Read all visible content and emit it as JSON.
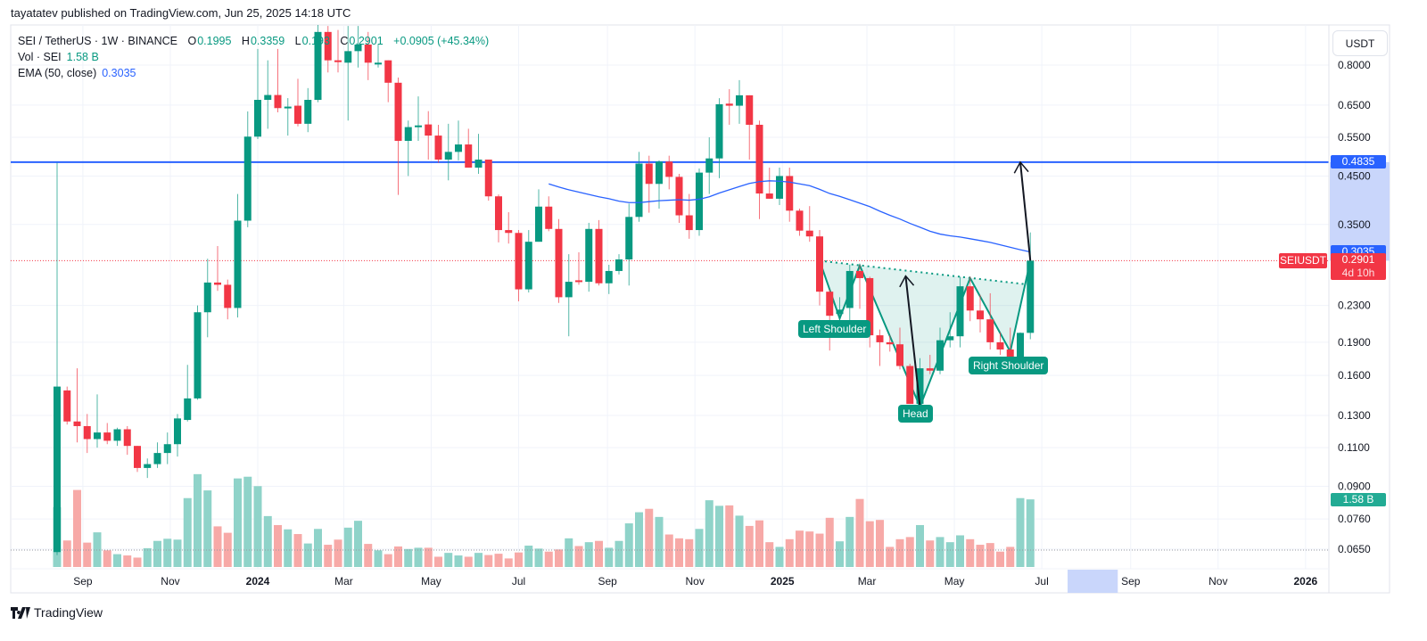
{
  "publish_line": "tayatatev published on TradingView.com, Jun 25, 2025 14:18 UTC",
  "legend": {
    "symbol": "SEI / TetherUS · 1W · BINANCE",
    "open_label": "O",
    "open": "0.1995",
    "high_label": "H",
    "high": "0.3359",
    "low_label": "L",
    "low": "0.193",
    "close_label": "C",
    "close": "0.2901",
    "change": "+0.0905 (+45.34%)",
    "volume_label": "Vol · SEI",
    "volume": "1.58 B",
    "ema_label": "EMA (50, close)",
    "ema": "0.3035"
  },
  "currency_button": "USDT",
  "tags": {
    "target_price": "0.4835",
    "ema_price": "0.3035",
    "symbol": "SEIUSDT",
    "last_price": "0.2901",
    "countdown": "4d 10h",
    "volume": "1.58 B"
  },
  "pattern_labels": {
    "left_shoulder": "Left Shoulder",
    "head": "Head",
    "right_shoulder": "Right Shoulder"
  },
  "logo_text": "TradingView",
  "colors": {
    "up": "#089981",
    "down": "#f23645",
    "ema": "#2962ff",
    "level_line": "#2962ff",
    "pattern": "#089981",
    "volume_up": "#8fd3c9",
    "volume_down": "#f7a9a7"
  },
  "chart_data": {
    "type": "candlestick",
    "symbol": "SEIUSDT",
    "interval": "1W",
    "y_scale": "log",
    "grid": true,
    "columns": [
      "date",
      "open",
      "high",
      "low",
      "close",
      "volume_B",
      "ema50"
    ],
    "candles": [
      [
        "2023-08-14",
        0.064,
        0.482,
        0.063,
        0.151,
        1.4,
        null
      ],
      [
        "2023-08-21",
        0.148,
        0.151,
        0.124,
        0.126,
        0.62,
        null
      ],
      [
        "2023-08-28",
        0.126,
        0.166,
        0.113,
        0.123,
        1.8,
        null
      ],
      [
        "2023-09-04",
        0.123,
        0.131,
        0.107,
        0.115,
        0.57,
        null
      ],
      [
        "2023-09-11",
        0.115,
        0.145,
        0.11,
        0.119,
        0.81,
        null
      ],
      [
        "2023-09-18",
        0.119,
        0.125,
        0.112,
        0.114,
        0.39,
        null
      ],
      [
        "2023-09-25",
        0.114,
        0.122,
        0.111,
        0.121,
        0.3,
        null
      ],
      [
        "2023-10-02",
        0.121,
        0.123,
        0.106,
        0.111,
        0.27,
        null
      ],
      [
        "2023-10-09",
        0.111,
        0.111,
        0.097,
        0.099,
        0.22,
        null
      ],
      [
        "2023-10-16",
        0.099,
        0.104,
        0.094,
        0.101,
        0.44,
        null
      ],
      [
        "2023-10-23",
        0.101,
        0.113,
        0.099,
        0.107,
        0.61,
        null
      ],
      [
        "2023-10-30",
        0.107,
        0.119,
        0.101,
        0.112,
        0.66,
        null
      ],
      [
        "2023-11-06",
        0.112,
        0.131,
        0.105,
        0.128,
        0.64,
        null
      ],
      [
        "2023-11-13",
        0.127,
        0.169,
        0.126,
        0.142,
        1.61,
        null
      ],
      [
        "2023-11-20",
        0.142,
        0.23,
        0.141,
        0.222,
        2.17,
        null
      ],
      [
        "2023-11-27",
        0.222,
        0.293,
        0.195,
        0.259,
        1.79,
        null
      ],
      [
        "2023-12-04",
        0.259,
        0.313,
        0.248,
        0.256,
        0.95,
        null
      ],
      [
        "2023-12-11",
        0.256,
        0.263,
        0.214,
        0.227,
        0.8,
        null
      ],
      [
        "2023-12-18",
        0.227,
        0.41,
        0.216,
        0.357,
        2.07,
        null
      ],
      [
        "2023-12-25",
        0.357,
        0.629,
        0.345,
        0.552,
        2.11,
        null
      ],
      [
        "2024-01-01",
        0.552,
        0.87,
        0.545,
        0.668,
        1.89,
        null
      ],
      [
        "2024-01-08",
        0.668,
        0.82,
        0.575,
        0.685,
        1.19,
        null
      ],
      [
        "2024-01-15",
        0.685,
        0.87,
        0.626,
        0.64,
        0.98,
        null
      ],
      [
        "2024-01-22",
        0.64,
        0.674,
        0.555,
        0.645,
        0.88,
        null
      ],
      [
        "2024-01-29",
        0.648,
        0.745,
        0.582,
        0.59,
        0.77,
        null
      ],
      [
        "2024-02-05",
        0.59,
        0.71,
        0.565,
        0.668,
        0.55,
        null
      ],
      [
        "2024-02-12",
        0.668,
        1.0,
        0.66,
        0.95,
        0.89,
        null
      ],
      [
        "2024-02-19",
        0.95,
        0.98,
        0.77,
        0.82,
        0.52,
        null
      ],
      [
        "2024-02-26",
        0.82,
        0.96,
        0.77,
        0.815,
        0.64,
        null
      ],
      [
        "2024-03-04",
        0.81,
        0.98,
        0.6,
        0.86,
        0.92,
        null
      ],
      [
        "2024-03-11",
        0.86,
        0.98,
        0.79,
        0.89,
        1.08,
        null
      ],
      [
        "2024-03-18",
        0.89,
        0.95,
        0.74,
        0.81,
        0.54,
        null
      ],
      [
        "2024-03-25",
        0.805,
        0.89,
        0.79,
        0.81,
        0.39,
        null
      ],
      [
        "2024-04-01",
        0.82,
        0.82,
        0.66,
        0.73,
        0.3,
        null
      ],
      [
        "2024-04-08",
        0.73,
        0.75,
        0.408,
        0.54,
        0.48,
        null
      ],
      [
        "2024-04-15",
        0.54,
        0.6,
        0.45,
        0.58,
        0.42,
        null
      ],
      [
        "2024-04-22",
        0.58,
        0.68,
        0.54,
        0.585,
        0.45,
        null
      ],
      [
        "2024-04-29",
        0.588,
        0.63,
        0.49,
        0.555,
        0.45,
        null
      ],
      [
        "2024-05-06",
        0.555,
        0.587,
        0.482,
        0.49,
        0.24,
        null
      ],
      [
        "2024-05-13",
        0.49,
        0.59,
        0.44,
        0.51,
        0.33,
        null
      ],
      [
        "2024-05-20",
        0.51,
        0.6,
        0.488,
        0.53,
        0.27,
        null
      ],
      [
        "2024-05-27",
        0.53,
        0.575,
        0.47,
        0.47,
        0.24,
        null
      ],
      [
        "2024-06-03",
        0.47,
        0.56,
        0.455,
        0.49,
        0.33,
        null
      ],
      [
        "2024-06-10",
        0.49,
        0.49,
        0.396,
        0.405,
        0.28,
        null
      ],
      [
        "2024-06-17",
        0.405,
        0.409,
        0.319,
        0.34,
        0.31,
        null
      ],
      [
        "2024-06-24",
        0.34,
        0.373,
        0.317,
        0.335,
        0.2,
        null
      ],
      [
        "2024-07-01",
        0.335,
        0.34,
        0.235,
        0.25,
        0.34,
        null
      ],
      [
        "2024-07-08",
        0.25,
        0.34,
        0.246,
        0.32,
        0.5,
        null
      ],
      [
        "2024-07-15",
        0.32,
        0.42,
        0.32,
        0.384,
        0.43,
        null
      ],
      [
        "2024-07-22",
        0.384,
        0.405,
        0.338,
        0.342,
        0.36,
        0.432
      ],
      [
        "2024-07-29",
        0.342,
        0.36,
        0.233,
        0.24,
        0.41,
        0.425
      ],
      [
        "2024-08-05",
        0.24,
        0.3,
        0.196,
        0.26,
        0.67,
        0.419
      ],
      [
        "2024-08-12",
        0.262,
        0.303,
        0.256,
        0.26,
        0.49,
        0.414
      ],
      [
        "2024-08-19",
        0.26,
        0.353,
        0.247,
        0.342,
        0.58,
        0.409
      ],
      [
        "2024-08-26",
        0.342,
        0.358,
        0.255,
        0.258,
        0.61,
        0.404
      ],
      [
        "2024-09-02",
        0.258,
        0.284,
        0.244,
        0.275,
        0.45,
        0.4
      ],
      [
        "2024-09-09",
        0.275,
        0.3,
        0.27,
        0.292,
        0.61,
        0.395
      ],
      [
        "2024-09-16",
        0.292,
        0.39,
        0.255,
        0.364,
        1.02,
        0.392
      ],
      [
        "2024-09-23",
        0.364,
        0.51,
        0.355,
        0.48,
        1.28,
        0.392
      ],
      [
        "2024-09-30",
        0.48,
        0.5,
        0.372,
        0.432,
        1.36,
        0.394
      ],
      [
        "2024-10-07",
        0.432,
        0.488,
        0.38,
        0.485,
        1.17,
        0.396
      ],
      [
        "2024-10-14",
        0.485,
        0.5,
        0.42,
        0.448,
        0.76,
        0.397
      ],
      [
        "2024-10-21",
        0.448,
        0.455,
        0.353,
        0.367,
        0.67,
        0.398
      ],
      [
        "2024-10-28",
        0.367,
        0.41,
        0.325,
        0.34,
        0.65,
        0.397
      ],
      [
        "2024-11-04",
        0.34,
        0.468,
        0.33,
        0.458,
        0.89,
        0.399
      ],
      [
        "2024-11-11",
        0.458,
        0.55,
        0.41,
        0.493,
        1.56,
        0.404
      ],
      [
        "2024-11-18",
        0.493,
        0.674,
        0.445,
        0.653,
        1.43,
        0.412
      ],
      [
        "2024-11-25",
        0.655,
        0.706,
        0.587,
        0.648,
        1.44,
        0.419
      ],
      [
        "2024-12-02",
        0.648,
        0.74,
        0.59,
        0.684,
        1.2,
        0.426
      ],
      [
        "2024-12-09",
        0.684,
        0.684,
        0.49,
        0.587,
        0.96,
        0.433
      ],
      [
        "2024-12-16",
        0.587,
        0.6,
        0.36,
        0.411,
        1.09,
        0.437
      ],
      [
        "2024-12-23",
        0.411,
        0.47,
        0.4,
        0.4,
        0.58,
        0.439
      ],
      [
        "2024-12-30",
        0.4,
        0.47,
        0.387,
        0.45,
        0.47,
        0.438
      ],
      [
        "2025-01-06",
        0.45,
        0.47,
        0.355,
        0.376,
        0.65,
        0.436
      ],
      [
        "2025-01-13",
        0.376,
        0.38,
        0.33,
        0.339,
        0.85,
        0.432
      ],
      [
        "2025-01-20",
        0.339,
        0.385,
        0.32,
        0.329,
        0.83,
        0.428
      ],
      [
        "2025-01-27",
        0.329,
        0.34,
        0.23,
        0.247,
        0.78,
        0.42
      ],
      [
        "2025-02-03",
        0.247,
        0.25,
        0.182,
        0.218,
        1.15,
        0.411
      ],
      [
        "2025-02-10",
        0.22,
        0.24,
        0.21,
        0.225,
        0.6,
        0.405
      ],
      [
        "2025-02-17",
        0.227,
        0.284,
        0.21,
        0.275,
        1.17,
        0.398
      ],
      [
        "2025-02-24",
        0.275,
        0.284,
        0.226,
        0.265,
        1.59,
        0.391
      ],
      [
        "2025-03-03",
        0.265,
        0.267,
        0.185,
        0.197,
        1.07,
        0.384
      ],
      [
        "2025-03-10",
        0.197,
        0.203,
        0.168,
        0.19,
        1.1,
        0.375
      ],
      [
        "2025-03-17",
        0.19,
        0.197,
        0.181,
        0.188,
        0.47,
        0.367
      ],
      [
        "2025-03-24",
        0.188,
        0.205,
        0.165,
        0.168,
        0.65,
        0.36
      ],
      [
        "2025-03-31",
        0.168,
        0.17,
        0.138,
        0.138,
        0.7,
        0.352
      ],
      [
        "2025-04-07",
        0.138,
        0.175,
        0.135,
        0.166,
        0.98,
        0.345
      ],
      [
        "2025-04-14",
        0.166,
        0.178,
        0.161,
        0.164,
        0.62,
        0.338
      ],
      [
        "2025-04-21",
        0.164,
        0.205,
        0.161,
        0.192,
        0.7,
        0.333
      ],
      [
        "2025-04-28",
        0.192,
        0.222,
        0.185,
        0.196,
        0.58,
        0.33
      ],
      [
        "2025-05-05",
        0.196,
        0.267,
        0.185,
        0.254,
        0.74,
        0.328
      ],
      [
        "2025-05-12",
        0.254,
        0.267,
        0.212,
        0.224,
        0.65,
        0.325
      ],
      [
        "2025-05-19",
        0.224,
        0.243,
        0.2,
        0.214,
        0.52,
        0.322
      ],
      [
        "2025-05-26",
        0.214,
        0.245,
        0.183,
        0.19,
        0.56,
        0.319
      ],
      [
        "2025-06-02",
        0.19,
        0.2,
        0.178,
        0.183,
        0.36,
        0.315
      ],
      [
        "2025-06-09",
        0.183,
        0.205,
        0.168,
        0.171,
        0.47,
        0.311
      ],
      [
        "2025-06-16",
        0.171,
        0.2,
        0.168,
        0.1995,
        1.61,
        0.307
      ],
      [
        "2025-06-23",
        0.1995,
        0.3359,
        0.193,
        0.2901,
        1.58,
        0.3035
      ]
    ],
    "price_axis": {
      "unit": "USDT",
      "ticks": [
        "0.8000",
        "0.6500",
        "0.5500",
        "0.4500",
        "0.3500",
        "0.2300",
        "0.1900",
        "0.1600",
        "0.1300",
        "0.1100",
        "0.0900",
        "0.0760",
        "0.0650"
      ]
    },
    "time_axis": {
      "ticks": [
        {
          "label": "Sep",
          "date": "2023-09-01",
          "bold": false
        },
        {
          "label": "Nov",
          "date": "2023-11-01",
          "bold": false
        },
        {
          "label": "2024",
          "date": "2024-01-01",
          "bold": true
        },
        {
          "label": "Mar",
          "date": "2024-03-01",
          "bold": false
        },
        {
          "label": "May",
          "date": "2024-05-01",
          "bold": false
        },
        {
          "label": "Jul",
          "date": "2024-07-01",
          "bold": false
        },
        {
          "label": "Sep",
          "date": "2024-09-01",
          "bold": false
        },
        {
          "label": "Nov",
          "date": "2024-11-01",
          "bold": false
        },
        {
          "label": "2025",
          "date": "2025-01-01",
          "bold": true
        },
        {
          "label": "Mar",
          "date": "2025-03-01",
          "bold": false
        },
        {
          "label": "May",
          "date": "2025-05-01",
          "bold": false
        },
        {
          "label": "Jul",
          "date": "2025-07-01",
          "bold": false
        },
        {
          "label": "Sep",
          "date": "2025-09-01",
          "bold": false
        },
        {
          "label": "Nov",
          "date": "2025-11-01",
          "bold": false
        },
        {
          "label": "2026",
          "date": "2026-01-01",
          "bold": true
        }
      ]
    },
    "time_axis_highlight": [
      "2025-07-19",
      "2025-08-23"
    ],
    "price_axis_highlight": [
      0.4835,
      0.2901
    ],
    "last_price": 0.2901,
    "drawings": {
      "horizontal_level": 0.4835,
      "neckline": [
        [
          "2025-01-27",
          0.29
        ],
        [
          "2025-06-23",
          0.256
        ]
      ],
      "pattern_path": [
        [
          "2025-01-27",
          0.29
        ],
        [
          "2025-02-10",
          0.215
        ],
        [
          "2025-02-24",
          0.283
        ],
        [
          "2025-04-07",
          0.136
        ],
        [
          "2025-05-12",
          0.265
        ],
        [
          "2025-06-09",
          0.181
        ],
        [
          "2025-06-23",
          0.29
        ]
      ],
      "arrows": [
        {
          "from": [
            "2025-04-07",
            0.136
          ],
          "to": [
            "2025-03-28",
            0.268
          ]
        },
        {
          "from": [
            "2025-06-23",
            0.29
          ],
          "to": [
            "2025-06-16",
            0.4835
          ]
        }
      ]
    }
  }
}
